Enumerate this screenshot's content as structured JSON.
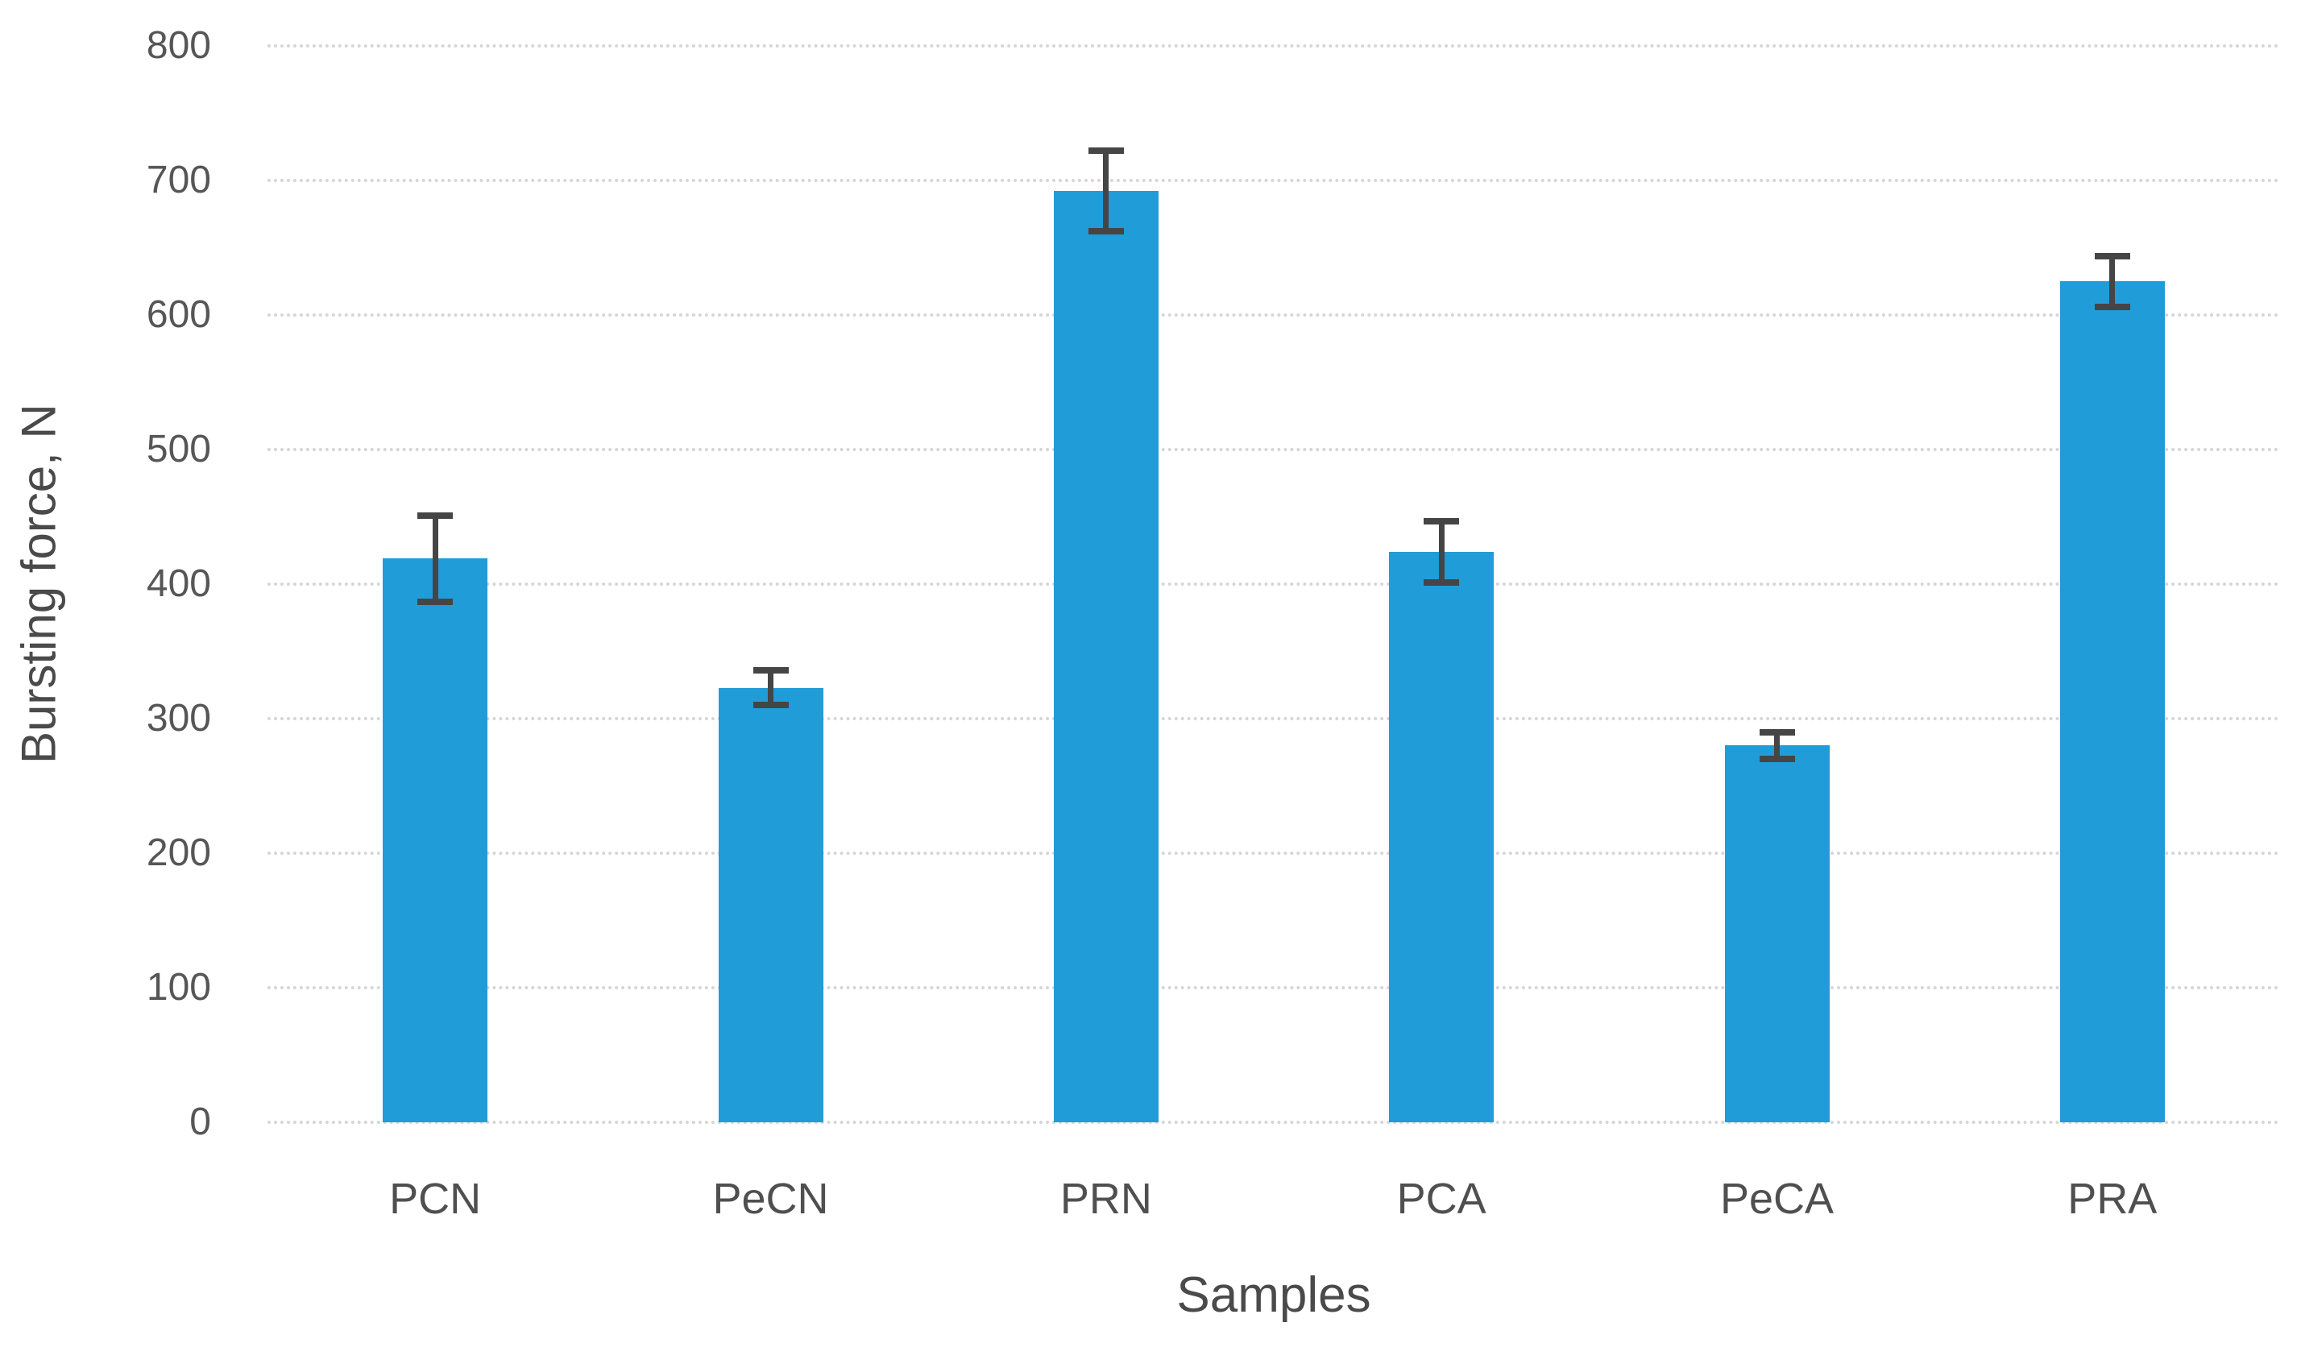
{
  "chart_data": {
    "type": "bar",
    "title": "",
    "xlabel": "Samples",
    "ylabel": "Bursting force, N",
    "categories": [
      "PCN",
      "PeCN",
      "PRN",
      "PCA",
      "PeCA",
      "PRA"
    ],
    "values": [
      419,
      323,
      692,
      424,
      280,
      625
    ],
    "error_bars": [
      32,
      13,
      30,
      23,
      10,
      19
    ],
    "yticks": [
      0,
      100,
      200,
      300,
      400,
      500,
      600,
      700,
      800
    ],
    "ylim": [
      0,
      800
    ],
    "grid": "horizontal-dotted",
    "legend_position": "none",
    "colors": {
      "bar": "#209CD8",
      "error_bar": "#454545",
      "gridline": "#D6D6D6",
      "tick_text": "#565656",
      "axis_title_text": "#4A4A4A",
      "background": "#FFFFFF"
    }
  }
}
